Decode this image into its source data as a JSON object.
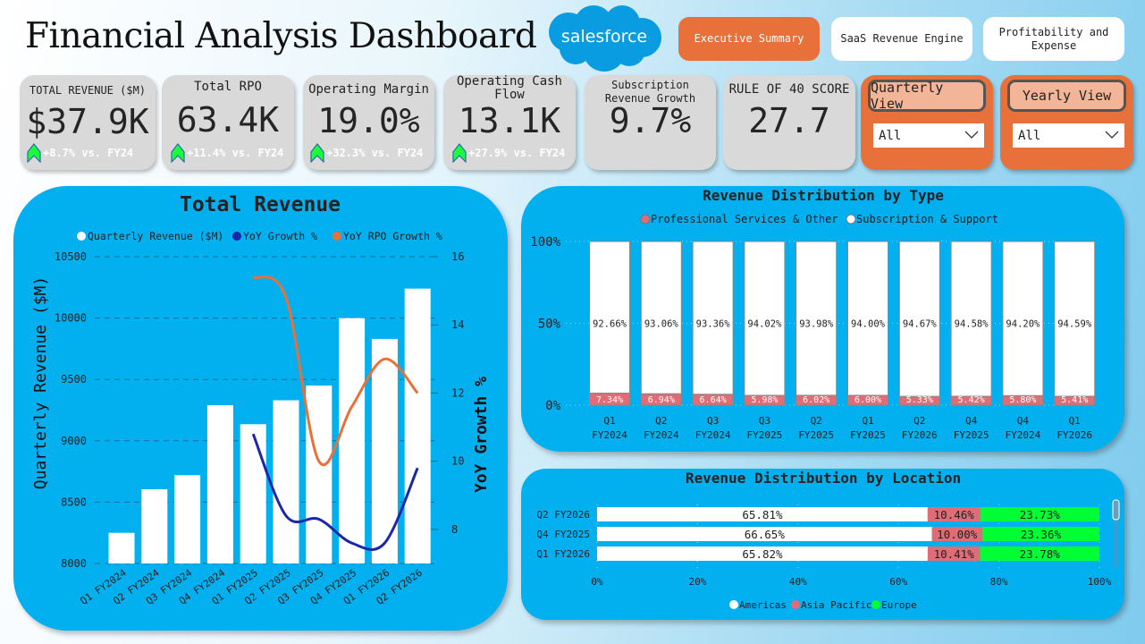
{
  "header": {
    "title": "Financial Analysis Dashboard",
    "logo_text": "salesforce"
  },
  "nav": [
    {
      "label": "Executive Summary",
      "active": true
    },
    {
      "label": "SaaS Revenue Engine",
      "active": false
    },
    {
      "label": "Profitability and Expense",
      "active": false
    }
  ],
  "kpis": [
    {
      "label": "TOTAL REVENUE ($M)",
      "value": "$37.9K",
      "delta": "+8.7% vs. FY24"
    },
    {
      "label": "Total RPO",
      "value": "63.4K",
      "delta": "+11.4% vs. FY24"
    },
    {
      "label": "Operating Margin",
      "value": "19.0%",
      "delta": "+32.3% vs. FY24"
    },
    {
      "label": "Operating Cash Flow",
      "value": "13.1K",
      "delta": "+27.9% vs. FY24"
    },
    {
      "label": "Subscription Revenue Growth",
      "value": "9.7%"
    },
    {
      "label": "RULE OF 40 SCORE",
      "value": "27.7"
    }
  ],
  "filters": [
    {
      "label": "Quarterly View",
      "selected": "All"
    },
    {
      "label": "Yearly View",
      "selected": "All"
    }
  ],
  "colors": {
    "panel": "#03b0ef",
    "accent": "#e8703a",
    "growth": "#1a27a8",
    "rpo": "#e8703a",
    "pro": "#e06c75",
    "americas": "#ffffff",
    "asia": "#e06c75",
    "europe": "#00ff33"
  },
  "chart_data": [
    {
      "type": "bar",
      "title": "Total Revenue",
      "ylabel": "Quarterly Revenue ($M)",
      "y2label": "YoY Growth %",
      "categories": [
        "Q1 FY2024",
        "Q2 FY2024",
        "Q3 FY2024",
        "Q4 FY2024",
        "Q1 FY2025",
        "Q2 FY2025",
        "Q3 FY2025",
        "Q4 FY2025",
        "Q1 FY2026",
        "Q2 FY2026"
      ],
      "ylim": [
        8000,
        10500
      ],
      "yticks": [
        "8000",
        "8500",
        "9000",
        "9500",
        "10000",
        "10500"
      ],
      "y2lim": [
        7,
        16
      ],
      "y2ticks": [
        "8",
        "10",
        "12",
        "14",
        "16"
      ],
      "legend": "top",
      "grid": true,
      "series": [
        {
          "name": "Quarterly Revenue ($M)",
          "type": "bar",
          "values": [
            8250,
            8605,
            8720,
            9290,
            9135,
            9330,
            9450,
            10000,
            9830,
            10240
          ]
        },
        {
          "name": "YoY Growth %",
          "type": "line",
          "axis": "right",
          "values": [
            null,
            null,
            null,
            null,
            10.8,
            8.4,
            8.3,
            7.6,
            7.6,
            9.8
          ]
        },
        {
          "name": "YoY RPO Growth %",
          "type": "line",
          "axis": "right",
          "values": [
            null,
            null,
            null,
            null,
            15.4,
            14.8,
            10.0,
            11.6,
            13.0,
            12.0
          ]
        }
      ]
    },
    {
      "type": "bar",
      "stacked": true,
      "title": "Revenue Distribution by Type",
      "yticks": [
        "0%",
        "50%",
        "100%"
      ],
      "legend": "top",
      "categories": [
        [
          "Q1",
          "FY2024"
        ],
        [
          "Q2",
          "FY2024"
        ],
        [
          "Q3",
          "FY2024"
        ],
        [
          "Q3",
          "FY2025"
        ],
        [
          "Q2",
          "FY2025"
        ],
        [
          "Q1",
          "FY2025"
        ],
        [
          "Q2",
          "FY2026"
        ],
        [
          "Q4",
          "FY2025"
        ],
        [
          "Q4",
          "FY2024"
        ],
        [
          "Q1",
          "FY2026"
        ]
      ],
      "series": [
        {
          "name": "Professional Services & Other",
          "values": [
            7.34,
            6.94,
            6.64,
            5.98,
            6.02,
            6.0,
            5.33,
            5.42,
            5.8,
            5.41
          ],
          "labels": [
            "7.34%",
            "6.94%",
            "6.64%",
            "5.98%",
            "6.02%",
            "6.00%",
            "5.33%",
            "5.42%",
            "5.80%",
            "5.41%"
          ]
        },
        {
          "name": "Subscription & Support",
          "values": [
            92.66,
            93.06,
            93.36,
            94.02,
            93.98,
            94.0,
            94.67,
            94.58,
            94.2,
            94.59
          ],
          "labels": [
            "92.66%",
            "93.06%",
            "93.36%",
            "94.02%",
            "93.98%",
            "94.00%",
            "94.67%",
            "94.58%",
            "94.20%",
            "94.59%"
          ]
        }
      ]
    },
    {
      "type": "bar",
      "orientation": "horizontal",
      "stacked": true,
      "title": "Revenue Distribution by Location",
      "xticks": [
        "0%",
        "20%",
        "40%",
        "60%",
        "80%",
        "100%"
      ],
      "legend": "bottom",
      "categories": [
        "Q2 FY2026",
        "Q4 FY2025",
        "Q1 FY2026"
      ],
      "series": [
        {
          "name": "Americas",
          "values": [
            65.81,
            66.65,
            65.82
          ],
          "labels": [
            "65.81%",
            "66.65%",
            "65.82%"
          ]
        },
        {
          "name": "Asia Pacific",
          "values": [
            10.46,
            10.0,
            10.41
          ],
          "labels": [
            "10.46%",
            "10.00%",
            "10.41%"
          ]
        },
        {
          "name": "Europe",
          "values": [
            23.73,
            23.36,
            23.78
          ],
          "labels": [
            "23.73%",
            "23.36%",
            "23.78%"
          ]
        }
      ]
    }
  ]
}
